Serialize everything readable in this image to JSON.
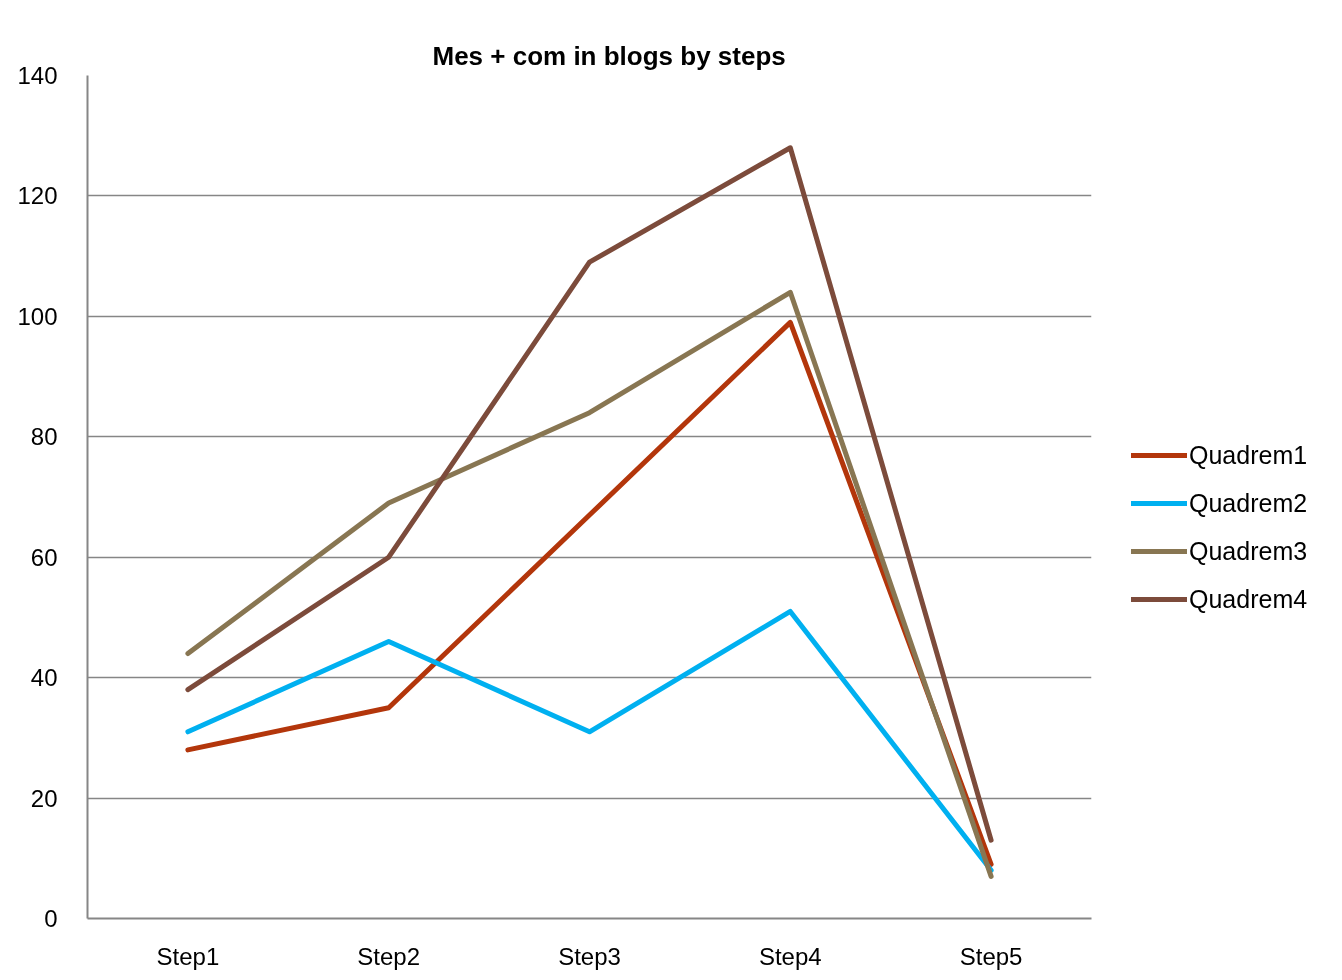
{
  "chart_data": {
    "type": "line",
    "title": "Mes + com in blogs by steps",
    "categories": [
      "Step1",
      "Step2",
      "Step3",
      "Step4",
      "Step5"
    ],
    "series": [
      {
        "name": "Quadrem1",
        "color": "#b3360b",
        "values": [
          28,
          35,
          67,
          99,
          9
        ]
      },
      {
        "name": "Quadrem2",
        "color": "#00b0f0",
        "values": [
          31,
          46,
          31,
          51,
          8
        ]
      },
      {
        "name": "Quadrem3",
        "color": "#887652",
        "values": [
          44,
          69,
          84,
          104,
          7
        ]
      },
      {
        "name": "Quadrem4",
        "color": "#7c4b3b",
        "values": [
          38,
          60,
          109,
          128,
          13
        ]
      }
    ],
    "ylim": [
      0,
      140
    ],
    "yticks": [
      0,
      20,
      40,
      60,
      80,
      100,
      120,
      140
    ],
    "grid": "y",
    "legend": "right",
    "line_style": "solid"
  }
}
